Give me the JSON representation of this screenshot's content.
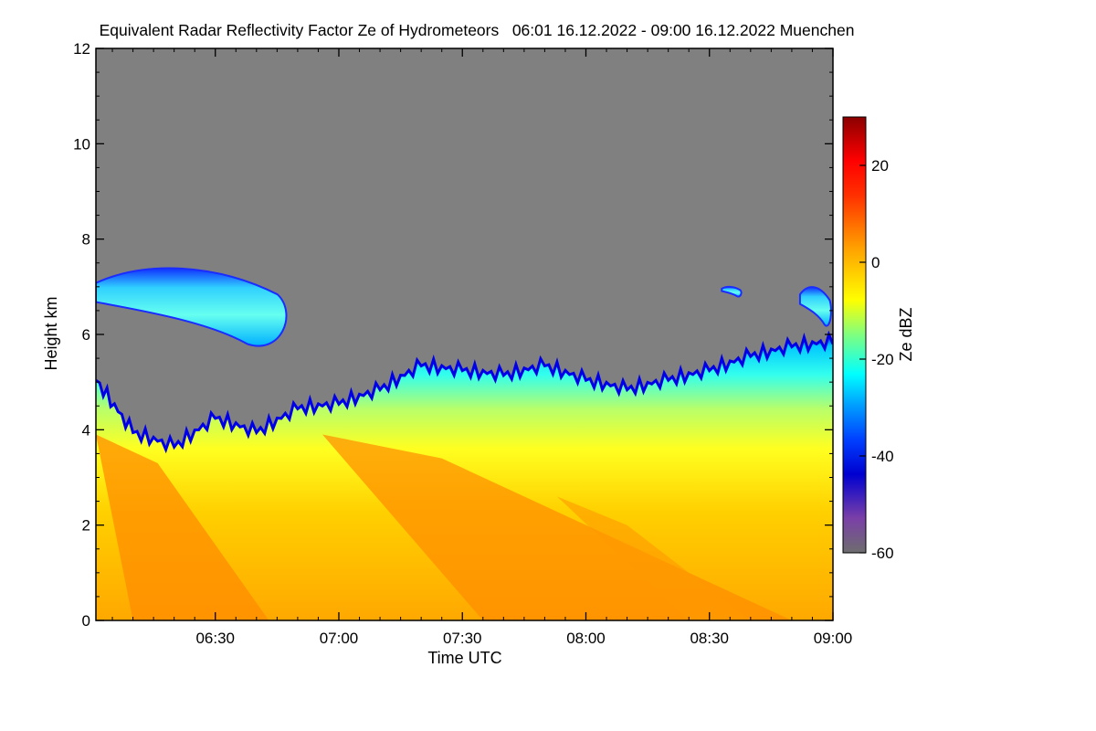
{
  "chart_data": {
    "type": "heatmap",
    "title": "Equivalent Radar Reflectivity Factor Ze of Hydrometeors   06:01 16.12.2022 - 09:00 16.12.2022 Muenchen",
    "xlabel": "Time UTC",
    "ylabel": "Height km",
    "colorbar_label": "Ze dBZ",
    "x_range_minutes_utc": [
      361,
      540
    ],
    "x_ticks": [
      {
        "label": "06:30",
        "minutes": 390
      },
      {
        "label": "07:00",
        "minutes": 420
      },
      {
        "label": "07:30",
        "minutes": 450
      },
      {
        "label": "08:00",
        "minutes": 480
      },
      {
        "label": "08:30",
        "minutes": 510
      },
      {
        "label": "09:00",
        "minutes": 540
      }
    ],
    "ylim": [
      0,
      12
    ],
    "y_ticks": [
      0,
      2,
      4,
      6,
      8,
      10,
      12
    ],
    "colorbar_range": [
      -60,
      30
    ],
    "colorbar_ticks": [
      -60,
      -40,
      -20,
      0,
      20
    ],
    "colors": {
      "background": "#808080",
      "colormap": [
        "#6e6e6e",
        "#0000c8",
        "#0000ff",
        "#00a0ff",
        "#00ffff",
        "#7fff7f",
        "#ffff00",
        "#ffa500",
        "#ff4000",
        "#ff0000",
        "#8b0000"
      ]
    },
    "echo_top_km": [
      {
        "t": "06:01",
        "top": 5.0
      },
      {
        "t": "06:10",
        "top": 3.9
      },
      {
        "t": "06:20",
        "top": 3.6
      },
      {
        "t": "06:30",
        "top": 4.2
      },
      {
        "t": "06:40",
        "top": 3.9
      },
      {
        "t": "06:50",
        "top": 4.4
      },
      {
        "t": "07:00",
        "top": 4.5
      },
      {
        "t": "07:10",
        "top": 4.8
      },
      {
        "t": "07:20",
        "top": 5.3
      },
      {
        "t": "07:30",
        "top": 5.2
      },
      {
        "t": "07:40",
        "top": 5.1
      },
      {
        "t": "07:50",
        "top": 5.3
      },
      {
        "t": "08:00",
        "top": 5.0
      },
      {
        "t": "08:10",
        "top": 4.8
      },
      {
        "t": "08:20",
        "top": 5.0
      },
      {
        "t": "08:30",
        "top": 5.2
      },
      {
        "t": "08:40",
        "top": 5.5
      },
      {
        "t": "08:50",
        "top": 5.7
      },
      {
        "t": "09:00",
        "top": 5.8
      }
    ],
    "upper_cloud_layers": [
      {
        "t_start": "06:01",
        "t_end": "06:50",
        "base_km": 5.8,
        "top_km": 7.4
      },
      {
        "t_start": "08:33",
        "t_end": "08:38",
        "base_km": 6.8,
        "top_km": 7.0
      },
      {
        "t_start": "08:52",
        "t_end": "09:00",
        "base_km": 6.2,
        "top_km": 7.0
      }
    ]
  }
}
